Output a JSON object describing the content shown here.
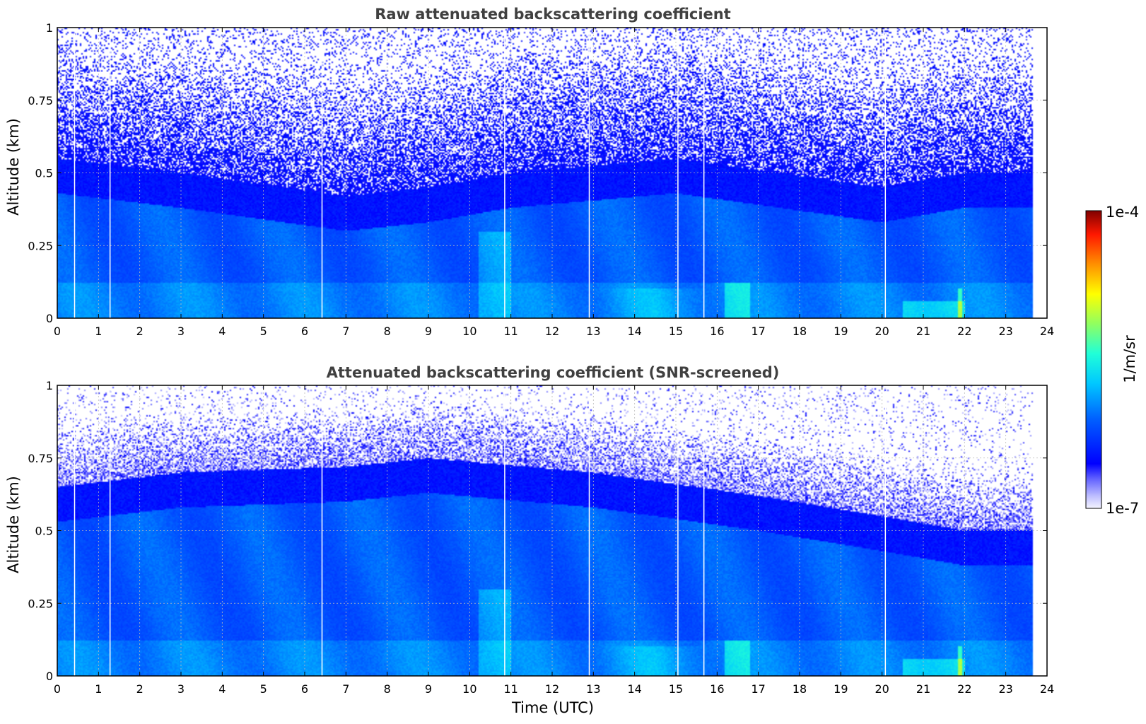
{
  "chart_data": [
    {
      "type": "heatmap",
      "title": "Raw attenuated backscattering coefficient",
      "xlabel": "",
      "ylabel": "Altitude (km)",
      "xlim": [
        0,
        24
      ],
      "ylim": [
        0,
        1
      ],
      "x_ticks": [
        "0",
        "1",
        "2",
        "3",
        "4",
        "5",
        "6",
        "7",
        "8",
        "9",
        "10",
        "11",
        "12",
        "13",
        "14",
        "15",
        "16",
        "17",
        "18",
        "19",
        "20",
        "21",
        "22",
        "23",
        "24"
      ],
      "y_ticks": [
        "0",
        "0.25",
        "0.5",
        "0.75",
        "1"
      ],
      "grid": true,
      "data_end_time": 23.65,
      "missing_profile_times": [
        0.42,
        1.28,
        6.42,
        10.85,
        12.9,
        15.05,
        15.68,
        20.08
      ],
      "field_description": {
        "noise_floor_altitude_km": [
          0.55,
          0.5,
          0.42,
          0.45,
          0.5,
          0.55,
          0.45,
          0.5,
          0.5
        ],
        "noise_floor_time_utc": [
          0,
          3,
          7,
          9,
          11,
          15,
          20,
          22,
          23.65
        ],
        "surface_layer_peaks": [
          {
            "time": 16.5,
            "altitude_top": 0.12
          },
          {
            "time": 21.9,
            "altitude_top": 0.09
          }
        ]
      }
    },
    {
      "type": "heatmap",
      "title": "Attenuated backscattering coefficient (SNR-screened)",
      "xlabel": "Time (UTC)",
      "ylabel": "Altitude (km)",
      "xlim": [
        0,
        24
      ],
      "ylim": [
        0,
        1
      ],
      "x_ticks": [
        "0",
        "1",
        "2",
        "3",
        "4",
        "5",
        "6",
        "7",
        "8",
        "9",
        "10",
        "11",
        "12",
        "13",
        "14",
        "15",
        "16",
        "17",
        "18",
        "19",
        "20",
        "21",
        "22",
        "23",
        "24"
      ],
      "y_ticks": [
        "0",
        "0.25",
        "0.5",
        "0.75",
        "1"
      ],
      "grid": true,
      "data_end_time": 23.65,
      "missing_profile_times": [
        0.42,
        1.28,
        6.42,
        10.85,
        12.9,
        15.05,
        15.68,
        20.08
      ],
      "field_description": {
        "boundary_layer_top_km": [
          0.65,
          0.7,
          0.72,
          0.75,
          0.7,
          0.62,
          0.55,
          0.5,
          0.5
        ],
        "boundary_layer_time_utc": [
          0,
          3,
          7,
          9,
          13,
          17,
          20,
          22,
          23.65
        ]
      }
    }
  ],
  "colorbar": {
    "label": "1/m/sr",
    "max_label": "1e-4",
    "min_label": "1e-7",
    "scale": "log",
    "range": [
      1e-07,
      0.0001
    ],
    "colormap": "jet"
  }
}
